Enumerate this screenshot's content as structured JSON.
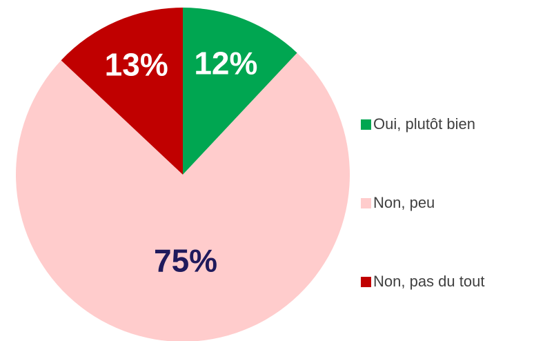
{
  "chart_data": {
    "type": "pie",
    "categories": [
      "Oui, plutôt bien",
      "Non, peu",
      "Non, pas du tout"
    ],
    "values": [
      12,
      75,
      13
    ],
    "value_labels": [
      "12%",
      "75%",
      "13%"
    ],
    "colors": [
      "#00a651",
      "#ffcccc",
      "#c00000"
    ],
    "label_colors": [
      "#ffffff",
      "#1f1a5c",
      "#ffffff"
    ],
    "start_angle": 0,
    "direction": "clockwise",
    "legend": "right"
  }
}
